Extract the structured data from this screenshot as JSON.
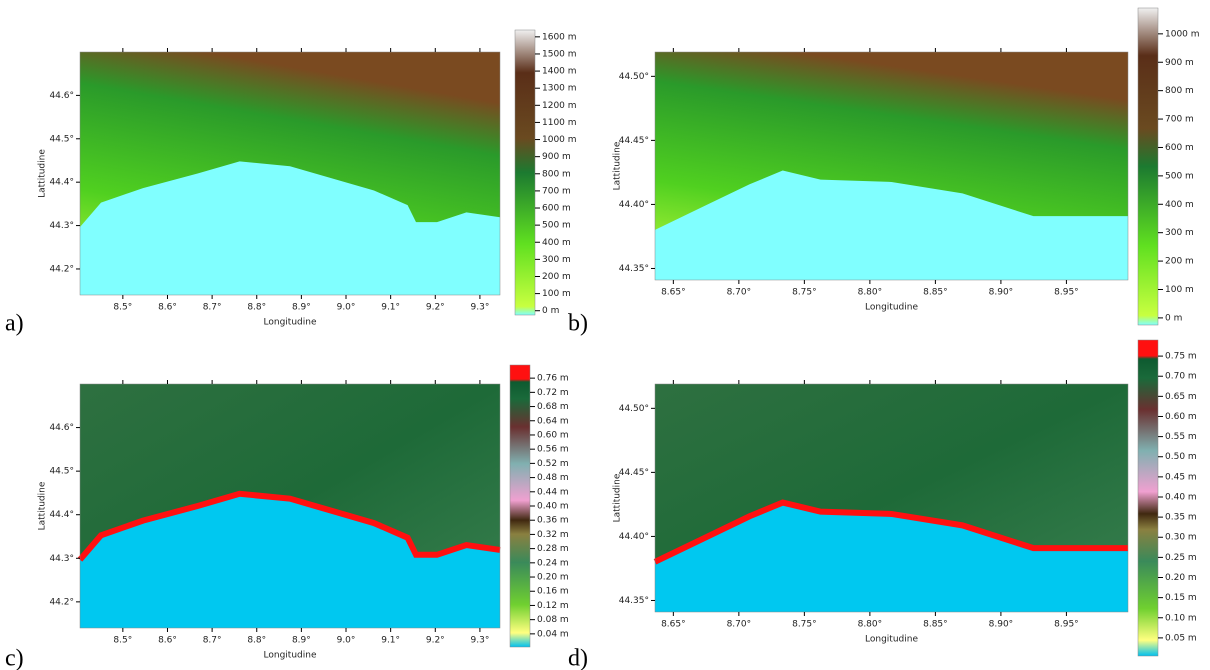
{
  "panels": [
    {
      "label": "a)",
      "xlabel": "Longitudine",
      "ylabel": "Lattitudine",
      "xlim": [
        8.404,
        9.345
      ],
      "ylim": [
        44.14,
        44.7
      ],
      "xticks": [
        {
          "value": 8.5,
          "label": "8.5°"
        },
        {
          "value": 8.6,
          "label": "8.6°"
        },
        {
          "value": 8.7,
          "label": "8.7°"
        },
        {
          "value": 8.8,
          "label": "8.8°"
        },
        {
          "value": 8.9,
          "label": "8.9°"
        },
        {
          "value": 9.0,
          "label": "9.0°"
        },
        {
          "value": 9.1,
          "label": "9.1°"
        },
        {
          "value": 9.2,
          "label": "9.2°"
        },
        {
          "value": 9.3,
          "label": "9.3°"
        }
      ],
      "yticks": [
        {
          "value": 44.2,
          "label": "44.2°"
        },
        {
          "value": 44.3,
          "label": "44.3°"
        },
        {
          "value": 44.4,
          "label": "44.4°"
        },
        {
          "value": 44.5,
          "label": "44.5°"
        },
        {
          "value": 44.6,
          "label": "44.6°"
        }
      ],
      "colorbar": {
        "lim": [
          -25,
          1640
        ],
        "ticks": [
          {
            "value": 0,
            "label": "0 m"
          },
          {
            "value": 100,
            "label": "100 m"
          },
          {
            "value": 200,
            "label": "200 m"
          },
          {
            "value": 300,
            "label": "300 m"
          },
          {
            "value": 400,
            "label": "400 m"
          },
          {
            "value": 500,
            "label": "500 m"
          },
          {
            "value": 600,
            "label": "600 m"
          },
          {
            "value": 700,
            "label": "700 m"
          },
          {
            "value": 800,
            "label": "800 m"
          },
          {
            "value": 900,
            "label": "900 m"
          },
          {
            "value": 1000,
            "label": "1000 m"
          },
          {
            "value": 1100,
            "label": "1100 m"
          },
          {
            "value": 1200,
            "label": "1200 m"
          },
          {
            "value": 1300,
            "label": "1300 m"
          },
          {
            "value": 1400,
            "label": "1400 m"
          },
          {
            "value": 1500,
            "label": "1500 m"
          },
          {
            "value": 1600,
            "label": "1600 m"
          }
        ]
      }
    },
    {
      "label": "b)",
      "xlabel": "Longitudine",
      "ylabel": "Lattitudine",
      "xlim": [
        8.636,
        8.997
      ],
      "ylim": [
        44.341,
        44.519
      ],
      "xticks": [
        {
          "value": 8.65,
          "label": "8.65°"
        },
        {
          "value": 8.7,
          "label": "8.70°"
        },
        {
          "value": 8.75,
          "label": "8.75°"
        },
        {
          "value": 8.8,
          "label": "8.80°"
        },
        {
          "value": 8.85,
          "label": "8.85°"
        },
        {
          "value": 8.9,
          "label": "8.90°"
        },
        {
          "value": 8.95,
          "label": "8.95°"
        }
      ],
      "yticks": [
        {
          "value": 44.35,
          "label": "44.35°"
        },
        {
          "value": 44.4,
          "label": "44.40°"
        },
        {
          "value": 44.45,
          "label": "44.45°"
        },
        {
          "value": 44.5,
          "label": "44.50°"
        }
      ],
      "colorbar": {
        "lim": [
          -25,
          1091
        ],
        "ticks": [
          {
            "value": 0,
            "label": "0 m"
          },
          {
            "value": 100,
            "label": "100 m"
          },
          {
            "value": 200,
            "label": "200 m"
          },
          {
            "value": 300,
            "label": "300 m"
          },
          {
            "value": 400,
            "label": "400 m"
          },
          {
            "value": 500,
            "label": "500 m"
          },
          {
            "value": 600,
            "label": "600 m"
          },
          {
            "value": 700,
            "label": "700 m"
          },
          {
            "value": 800,
            "label": "800 m"
          },
          {
            "value": 900,
            "label": "900 m"
          },
          {
            "value": 1000,
            "label": "1000 m"
          }
        ]
      }
    },
    {
      "label": "c)",
      "xlabel": "Longitudine",
      "ylabel": "Lattitudine",
      "xlim": [
        8.404,
        9.345
      ],
      "ylim": [
        44.14,
        44.7
      ],
      "xticks": [
        {
          "value": 8.5,
          "label": "8.5°"
        },
        {
          "value": 8.6,
          "label": "8.6°"
        },
        {
          "value": 8.7,
          "label": "8.7°"
        },
        {
          "value": 8.8,
          "label": "8.8°"
        },
        {
          "value": 8.9,
          "label": "8.9°"
        },
        {
          "value": 9.0,
          "label": "9.0°"
        },
        {
          "value": 9.1,
          "label": "9.1°"
        },
        {
          "value": 9.2,
          "label": "9.2°"
        },
        {
          "value": 9.3,
          "label": "9.3°"
        }
      ],
      "yticks": [
        {
          "value": 44.2,
          "label": "44.2°"
        },
        {
          "value": 44.3,
          "label": "44.3°"
        },
        {
          "value": 44.4,
          "label": "44.4°"
        },
        {
          "value": 44.5,
          "label": "44.5°"
        },
        {
          "value": 44.6,
          "label": "44.6°"
        }
      ],
      "colorbar": {
        "lim": [
          0.003,
          0.797
        ],
        "ticks": [
          {
            "value": 0.04,
            "label": "0.04 m"
          },
          {
            "value": 0.08,
            "label": "0.08 m"
          },
          {
            "value": 0.12,
            "label": "0.12 m"
          },
          {
            "value": 0.16,
            "label": "0.16 m"
          },
          {
            "value": 0.2,
            "label": "0.20 m"
          },
          {
            "value": 0.24,
            "label": "0.24 m"
          },
          {
            "value": 0.28,
            "label": "0.28 m"
          },
          {
            "value": 0.32,
            "label": "0.32 m"
          },
          {
            "value": 0.36,
            "label": "0.36 m"
          },
          {
            "value": 0.4,
            "label": "0.40 m"
          },
          {
            "value": 0.44,
            "label": "0.44 m"
          },
          {
            "value": 0.48,
            "label": "0.48 m"
          },
          {
            "value": 0.52,
            "label": "0.52 m"
          },
          {
            "value": 0.56,
            "label": "0.56 m"
          },
          {
            "value": 0.6,
            "label": "0.60 m"
          },
          {
            "value": 0.64,
            "label": "0.64 m"
          },
          {
            "value": 0.68,
            "label": "0.68 m"
          },
          {
            "value": 0.72,
            "label": "0.72 m"
          },
          {
            "value": 0.76,
            "label": "0.76 m"
          }
        ]
      }
    },
    {
      "label": "d)",
      "xlabel": "Longitudine",
      "ylabel": "Lattitudine",
      "xlim": [
        8.636,
        8.997
      ],
      "ylim": [
        44.341,
        44.519
      ],
      "xticks": [
        {
          "value": 8.65,
          "label": "8.65°"
        },
        {
          "value": 8.7,
          "label": "8.70°"
        },
        {
          "value": 8.75,
          "label": "8.75°"
        },
        {
          "value": 8.8,
          "label": "8.80°"
        },
        {
          "value": 8.85,
          "label": "8.85°"
        },
        {
          "value": 8.9,
          "label": "8.90°"
        },
        {
          "value": 8.95,
          "label": "8.95°"
        }
      ],
      "yticks": [
        {
          "value": 44.35,
          "label": "44.35°"
        },
        {
          "value": 44.4,
          "label": "44.40°"
        },
        {
          "value": 44.45,
          "label": "44.45°"
        },
        {
          "value": 44.5,
          "label": "44.50°"
        }
      ],
      "colorbar": {
        "lim": [
          0.005,
          0.79
        ],
        "ticks": [
          {
            "value": 0.05,
            "label": "0.05 m"
          },
          {
            "value": 0.1,
            "label": "0.10 m"
          },
          {
            "value": 0.15,
            "label": "0.15 m"
          },
          {
            "value": 0.2,
            "label": "0.20 m"
          },
          {
            "value": 0.25,
            "label": "0.25 m"
          },
          {
            "value": 0.3,
            "label": "0.30 m"
          },
          {
            "value": 0.35,
            "label": "0.35 m"
          },
          {
            "value": 0.4,
            "label": "0.40 m"
          },
          {
            "value": 0.45,
            "label": "0.45 m"
          },
          {
            "value": 0.5,
            "label": "0.50 m"
          },
          {
            "value": 0.55,
            "label": "0.55 m"
          },
          {
            "value": 0.6,
            "label": "0.60 m"
          },
          {
            "value": 0.65,
            "label": "0.65 m"
          },
          {
            "value": 0.7,
            "label": "0.70 m"
          },
          {
            "value": 0.75,
            "label": "0.75 m"
          }
        ]
      }
    }
  ]
}
